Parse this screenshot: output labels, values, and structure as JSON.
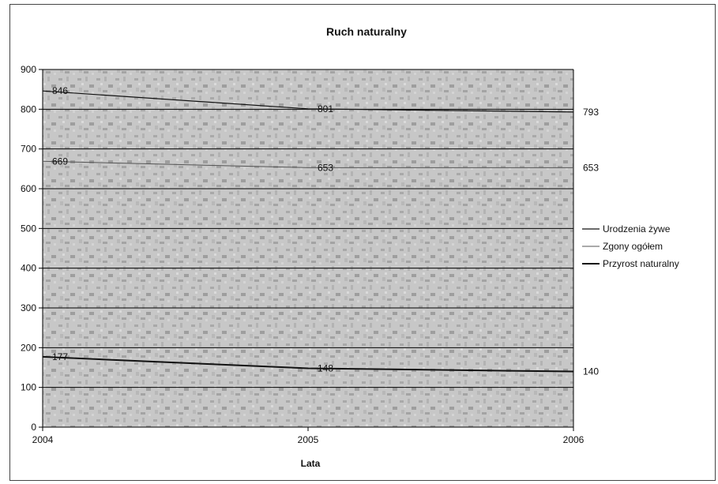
{
  "chart_data": {
    "type": "line",
    "title": "Ruch naturalny",
    "xlabel": "Lata",
    "ylabel": "",
    "x": [
      "2004",
      "2005",
      "2006"
    ],
    "ylim": [
      0,
      900
    ],
    "yticks": [
      "0",
      "100",
      "200",
      "300",
      "400",
      "500",
      "600",
      "700",
      "800",
      "900"
    ],
    "grid": true,
    "legend_position": "right",
    "series": [
      {
        "name": "Urodzenia żywe",
        "values": [
          846,
          801,
          793
        ],
        "labels": [
          "846",
          "801",
          "793"
        ],
        "color": "#111111",
        "width": 1.2
      },
      {
        "name": "Zgony ogółem",
        "values": [
          669,
          653,
          653
        ],
        "labels": [
          "669",
          "653",
          "653"
        ],
        "color": "#555555",
        "width": 1.0
      },
      {
        "name": "Przyrost naturalny",
        "values": [
          177,
          148,
          140
        ],
        "labels": [
          "177",
          "148",
          "140"
        ],
        "color": "#111111",
        "width": 2.0
      }
    ]
  }
}
